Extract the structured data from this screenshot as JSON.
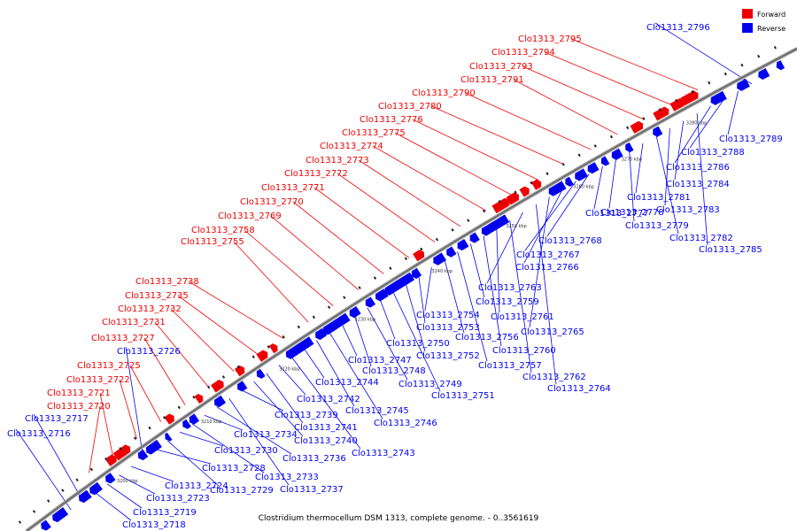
{
  "caption": "Clostridium thermocellum DSM 1313, complete genome. - 0..3561619",
  "legend": [
    {
      "label": "Forward",
      "color": "#ee0000"
    },
    {
      "label": "Reverse",
      "color": "#0000ee"
    }
  ],
  "colors": {
    "forward": "#ee0000",
    "reverse": "#0000ee",
    "backbone": "#888888"
  },
  "ticks": [
    "3200 kbp",
    "3210 kbp",
    "3220 kbp",
    "3230 kbp",
    "3240 kbp",
    "3250 kbp",
    "3260 kbp",
    "3270 kbp",
    "3280 kbp"
  ],
  "forward_labels": [
    "Clo1313_2720",
    "Clo1313_2721",
    "Clo1313_2722",
    "Clo1313_2725",
    "Clo1313_2727",
    "Clo1313_2731",
    "Clo1313_2732",
    "Clo1313_2735",
    "Clo1313_2738",
    "Clo1313_2755",
    "Clo1313_2758",
    "Clo1313_2769",
    "Clo1313_2770",
    "Clo1313_2771",
    "Clo1313_2772",
    "Clo1313_2773",
    "Clo1313_2774",
    "Clo1313_2775",
    "Clo1313_2776",
    "Clo1313_2780",
    "Clo1313_2790",
    "Clo1313_2791",
    "Clo1313_2793",
    "Clo1313_2794",
    "Clo1313_2795"
  ],
  "reverse_labels": [
    "Clo1313_2716",
    "Clo1313_2717",
    "Clo1313_2718",
    "Clo1313_2719",
    "Clo1313_2723",
    "Clo1313_2724",
    "Clo1313_2726",
    "Clo1313_2728",
    "Clo1313_2729",
    "Clo1313_2730",
    "Clo1313_2733",
    "Clo1313_2734",
    "Clo1313_2736",
    "Clo1313_2737",
    "Clo1313_2739",
    "Clo1313_2740",
    "Clo1313_2741",
    "Clo1313_2742",
    "Clo1313_2743",
    "Clo1313_2744",
    "Clo1313_2745",
    "Clo1313_2746",
    "Clo1313_2747",
    "Clo1313_2748",
    "Clo1313_2749",
    "Clo1313_2750",
    "Clo1313_2751",
    "Clo1313_2752",
    "Clo1313_2753",
    "Clo1313_2754",
    "Clo1313_2756",
    "Clo1313_2757",
    "Clo1313_2759",
    "Clo1313_2760",
    "Clo1313_2761",
    "Clo1313_2762",
    "Clo1313_2763",
    "Clo1313_2764",
    "Clo1313_2765",
    "Clo1313_2766",
    "Clo1313_2767",
    "Clo1313_2768",
    "Clo1313_2777",
    "Clo1313_2778",
    "Clo1313_2779",
    "Clo1313_2781",
    "Clo1313_2782",
    "Clo1313_2783",
    "Clo1313_2784",
    "Clo1313_2785",
    "Clo1313_2786",
    "Clo1313_2788",
    "Clo1313_2789",
    "Clo1313_2796"
  ]
}
